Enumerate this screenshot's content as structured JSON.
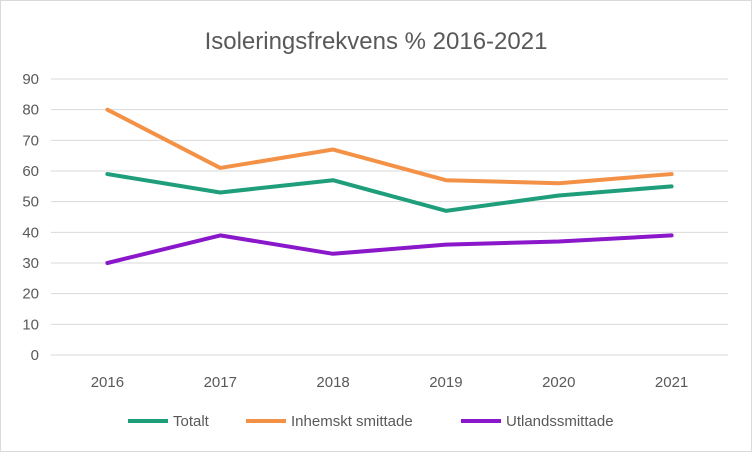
{
  "chart_data": {
    "type": "line",
    "title": "Isoleringsfrekvens % 2016-2021",
    "categories": [
      "2016",
      "2017",
      "2018",
      "2019",
      "2020",
      "2021"
    ],
    "series": [
      {
        "name": "Totalt",
        "color": "#1f9e7b",
        "values": [
          59,
          53,
          57,
          47,
          52,
          55
        ]
      },
      {
        "name": "Inhemskt smittade",
        "color": "#f39247",
        "values": [
          80,
          61,
          67,
          57,
          56,
          59
        ]
      },
      {
        "name": "Utlandssmittade",
        "color": "#8a17c9",
        "values": [
          30,
          39,
          33,
          36,
          37,
          39
        ]
      }
    ],
    "ylim": [
      0,
      90
    ],
    "yticks": [
      "0",
      "10",
      "20",
      "30",
      "40",
      "50",
      "60",
      "70",
      "80",
      "90"
    ],
    "grid": true,
    "legend": "bottom",
    "xlabel": "",
    "ylabel": ""
  }
}
